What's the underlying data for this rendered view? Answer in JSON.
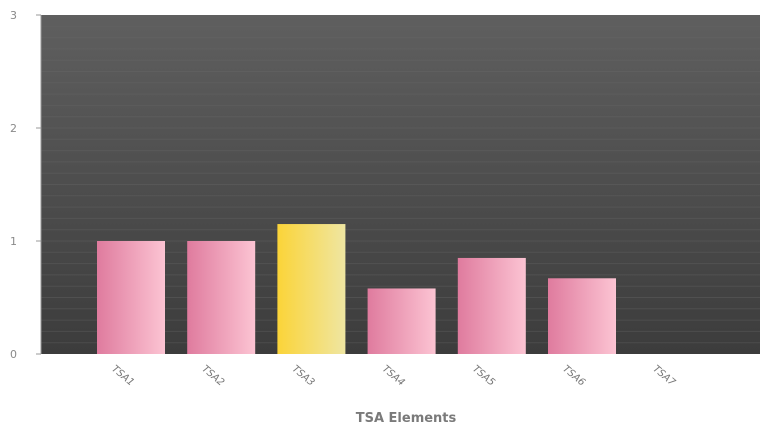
{
  "chart_data": {
    "type": "bar",
    "title": "",
    "xlabel": "TSA Elements",
    "ylabel": "",
    "ylim": [
      0,
      3
    ],
    "yticks": [
      "0",
      "1",
      "2",
      "3"
    ],
    "categories": [
      "TSA1",
      "TSA2",
      "TSA3",
      "TSA4",
      "TSA5",
      "TSA6",
      "TSA7"
    ],
    "values": [
      1.0,
      1.0,
      1.15,
      0.58,
      0.85,
      0.67,
      0
    ],
    "highlight_index": 2,
    "grid": true,
    "legend": "none",
    "colors": {
      "bar_dark": "#df7b9e",
      "bar_light": "#fcc4d3",
      "highlight_dark": "#fbd438",
      "highlight_light": "#efe6a2",
      "plot_top": "#5f5f5f",
      "plot_bottom": "#3c3c3c"
    }
  }
}
